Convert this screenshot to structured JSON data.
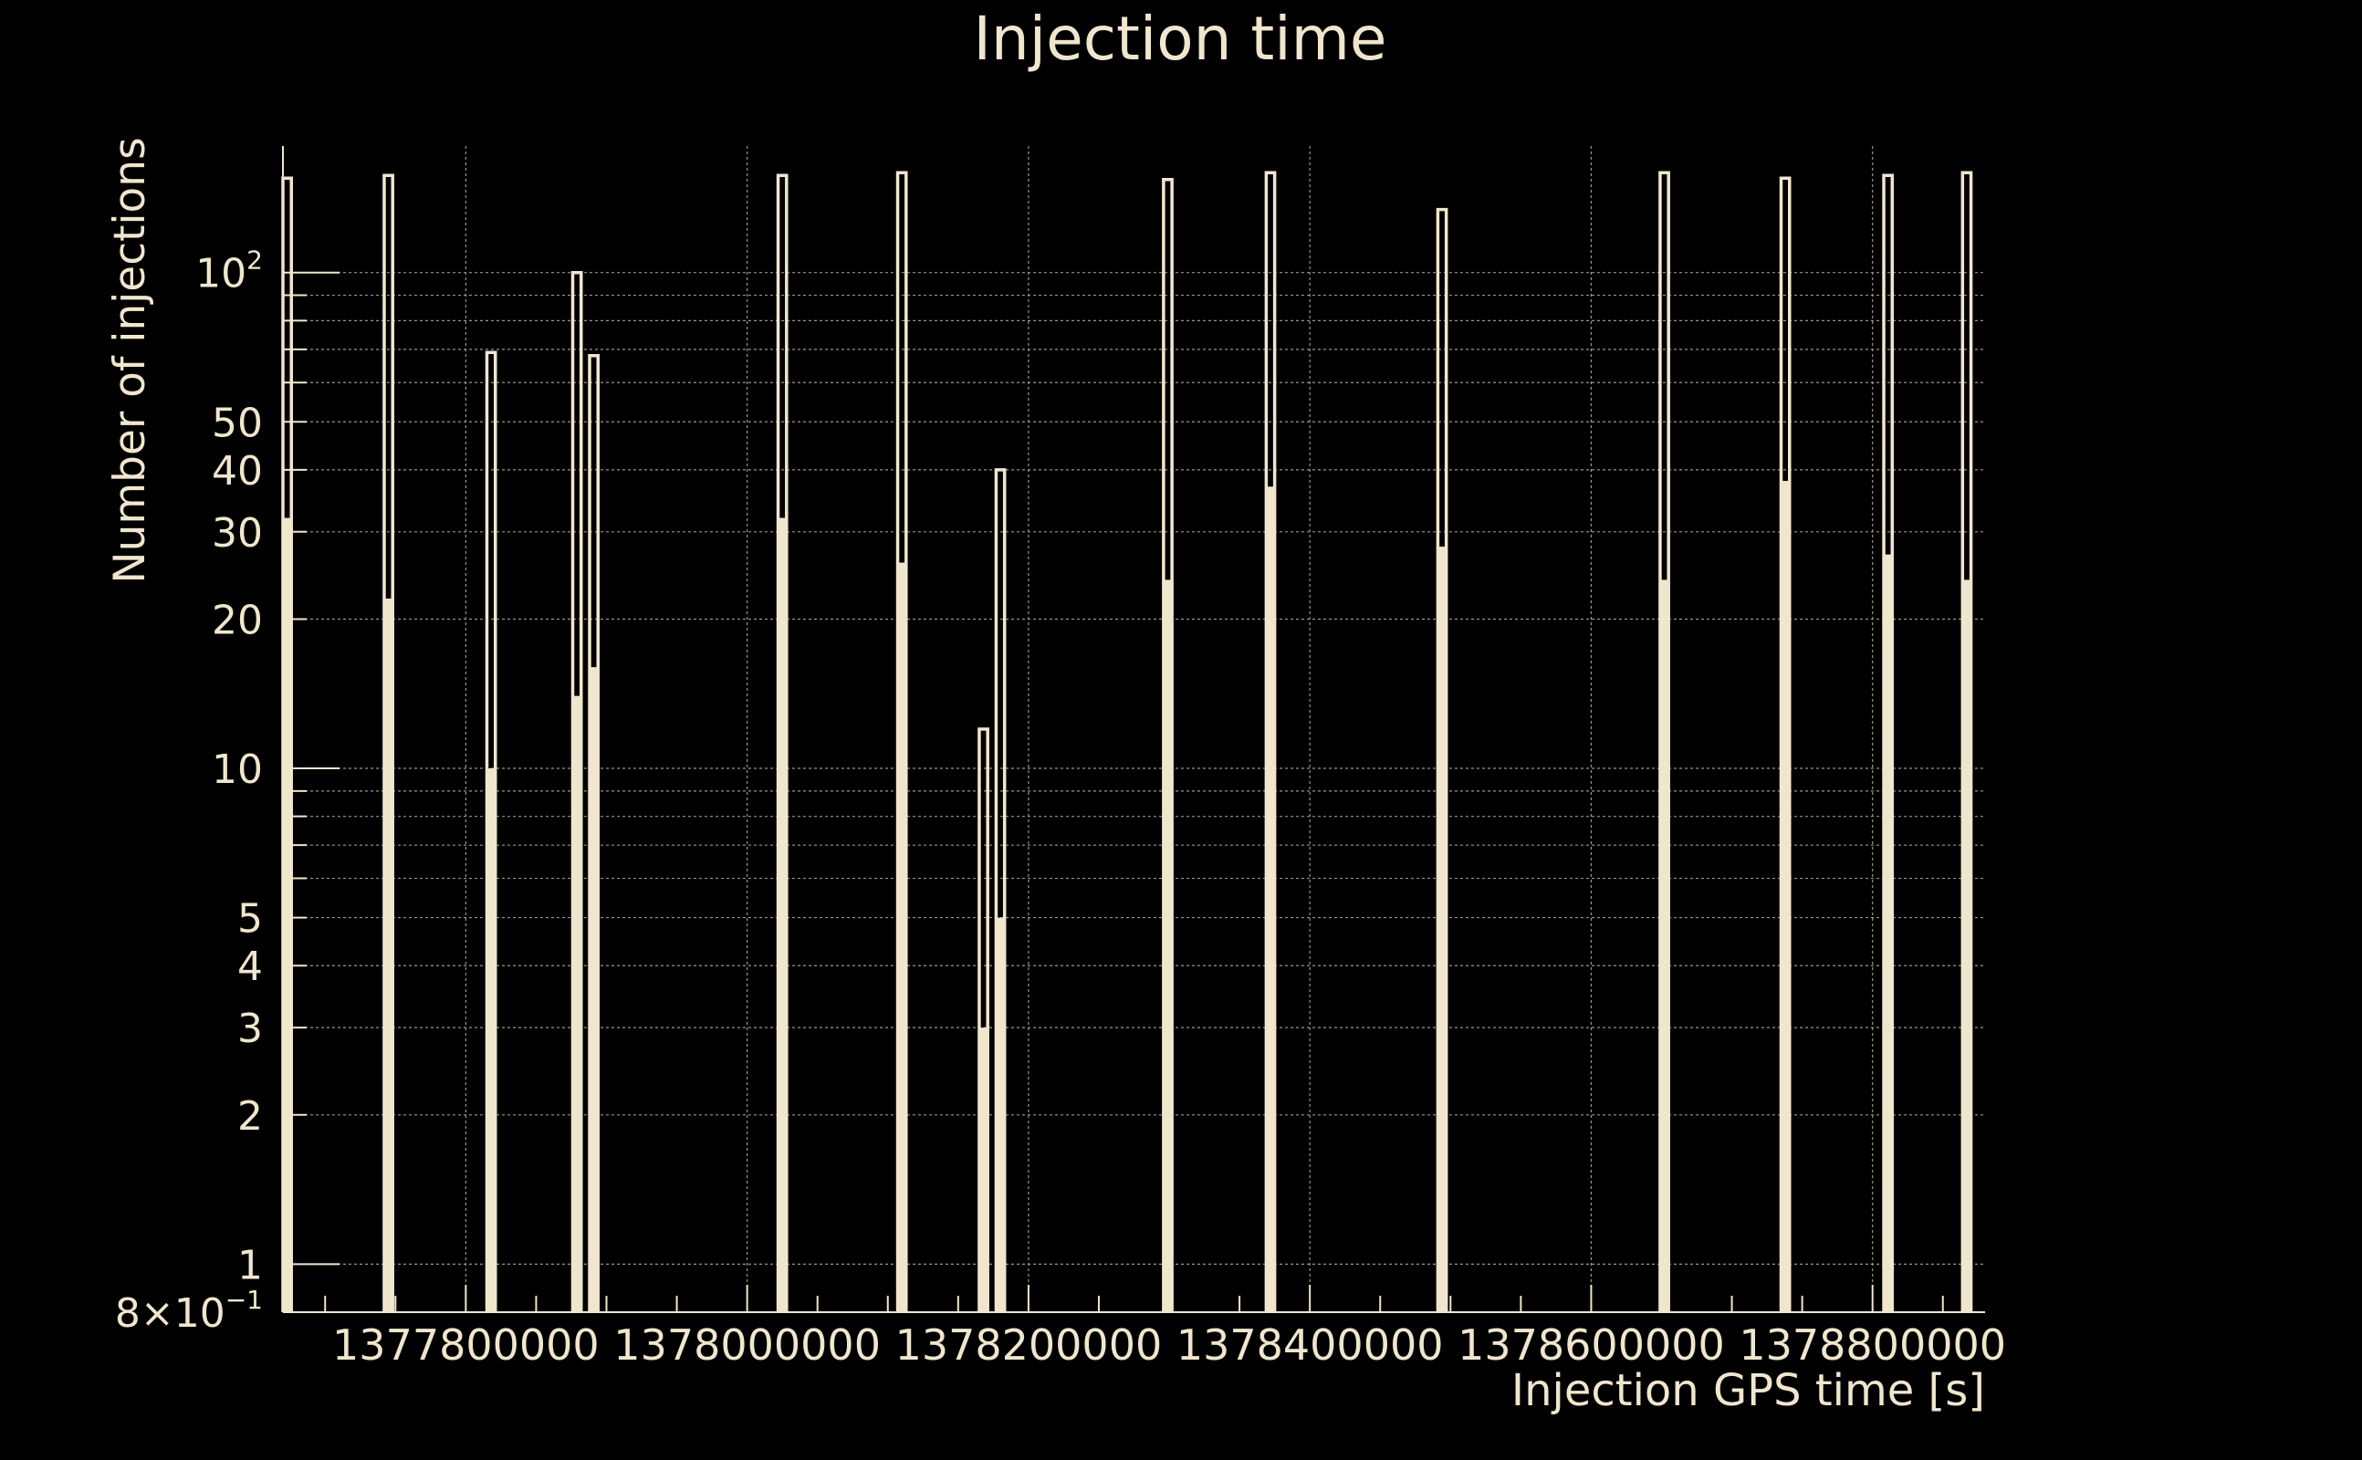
{
  "chart_data": {
    "type": "bar",
    "title": "Injection time",
    "xlabel": "Injection GPS time [s]",
    "ylabel": "Number of injections",
    "yscale": "log",
    "xlim": [
      1377670000,
      1378880000
    ],
    "ylim": [
      0.8,
      180
    ],
    "grid": true,
    "colors": {
      "background": "#000000",
      "foreground": "#f0e6ce",
      "grid": "#9a948a"
    },
    "xticks": [
      {
        "value": 1377800000,
        "label": "1377800000"
      },
      {
        "value": 1378000000,
        "label": "1378000000"
      },
      {
        "value": 1378200000,
        "label": "1378200000"
      },
      {
        "value": 1378400000,
        "label": "1378400000"
      },
      {
        "value": 1378600000,
        "label": "1378600000"
      },
      {
        "value": 1378800000,
        "label": "1378800000"
      }
    ],
    "yticks": [
      {
        "value": 0.8,
        "label": "8×10",
        "exp": "−1"
      },
      {
        "value": 1,
        "label": "1",
        "exp": ""
      },
      {
        "value": 2,
        "label": "2",
        "exp": ""
      },
      {
        "value": 3,
        "label": "3",
        "exp": ""
      },
      {
        "value": 4,
        "label": "4",
        "exp": ""
      },
      {
        "value": 5,
        "label": "5",
        "exp": ""
      },
      {
        "value": 10,
        "label": "10",
        "exp": ""
      },
      {
        "value": 20,
        "label": "20",
        "exp": ""
      },
      {
        "value": 30,
        "label": "30",
        "exp": ""
      },
      {
        "value": 40,
        "label": "40",
        "exp": ""
      },
      {
        "value": 50,
        "label": "50",
        "exp": ""
      },
      {
        "value": 100,
        "label": "10",
        "exp": "2"
      }
    ],
    "ygrid": [
      1,
      2,
      3,
      4,
      5,
      6,
      7,
      8,
      9,
      10,
      20,
      30,
      40,
      50,
      60,
      70,
      80,
      90,
      100
    ],
    "xgrid": [
      1377800000,
      1378000000,
      1378200000,
      1378400000,
      1378600000,
      1378800000
    ],
    "bin_width": 6000,
    "series": [
      {
        "style": "filled",
        "bins": [
          {
            "x": 1377673000,
            "value": 32
          },
          {
            "x": 1377745000,
            "value": 22
          },
          {
            "x": 1377818000,
            "value": 10
          },
          {
            "x": 1377879000,
            "value": 14
          },
          {
            "x": 1377891000,
            "value": 16
          },
          {
            "x": 1378025000,
            "value": 32
          },
          {
            "x": 1378110000,
            "value": 26
          },
          {
            "x": 1378168000,
            "value": 3
          },
          {
            "x": 1378180000,
            "value": 5
          },
          {
            "x": 1378299000,
            "value": 24
          },
          {
            "x": 1378372000,
            "value": 37
          },
          {
            "x": 1378494000,
            "value": 28
          },
          {
            "x": 1378652000,
            "value": 24
          },
          {
            "x": 1378738000,
            "value": 38
          },
          {
            "x": 1378811000,
            "value": 27
          },
          {
            "x": 1378867000,
            "value": 24
          }
        ]
      },
      {
        "style": "outline",
        "bins": [
          {
            "x": 1377673000,
            "value": 155
          },
          {
            "x": 1377745000,
            "value": 157
          },
          {
            "x": 1377818000,
            "value": 69
          },
          {
            "x": 1377879000,
            "value": 100
          },
          {
            "x": 1377891000,
            "value": 68
          },
          {
            "x": 1378025000,
            "value": 157
          },
          {
            "x": 1378110000,
            "value": 159
          },
          {
            "x": 1378168000,
            "value": 12
          },
          {
            "x": 1378180000,
            "value": 40
          },
          {
            "x": 1378299000,
            "value": 154
          },
          {
            "x": 1378372000,
            "value": 159
          },
          {
            "x": 1378494000,
            "value": 134
          },
          {
            "x": 1378652000,
            "value": 159
          },
          {
            "x": 1378738000,
            "value": 155
          },
          {
            "x": 1378811000,
            "value": 157
          },
          {
            "x": 1378867000,
            "value": 159
          }
        ]
      }
    ]
  }
}
